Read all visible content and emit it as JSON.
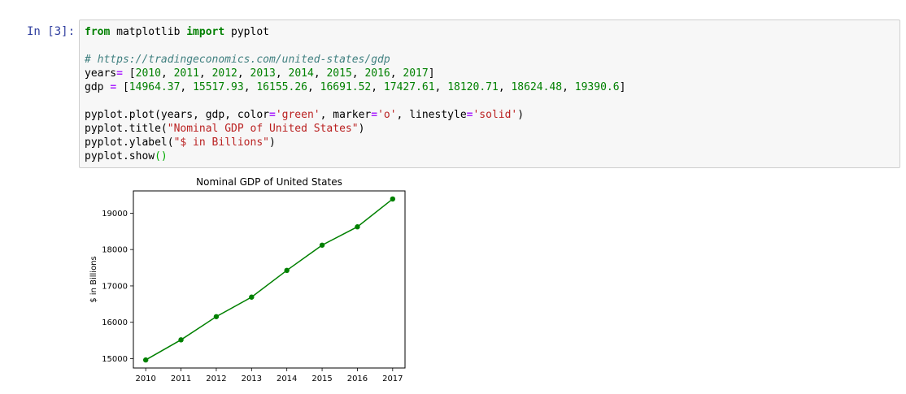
{
  "cell": {
    "prompt": "In [3]:",
    "lines": [
      [
        {
          "t": "from",
          "c": "kw"
        },
        {
          "t": " matplotlib "
        },
        {
          "t": "import",
          "c": "kw"
        },
        {
          "t": " pyplot"
        }
      ],
      [],
      [
        {
          "t": "# https://tradingeconomics.com/united-states/gdp",
          "c": "cm"
        }
      ],
      [
        {
          "t": "years"
        },
        {
          "t": "=",
          "c": "op"
        },
        {
          "t": " ["
        },
        {
          "t": "2010",
          "c": "num"
        },
        {
          "t": ", "
        },
        {
          "t": "2011",
          "c": "num"
        },
        {
          "t": ", "
        },
        {
          "t": "2012",
          "c": "num"
        },
        {
          "t": ", "
        },
        {
          "t": "2013",
          "c": "num"
        },
        {
          "t": ", "
        },
        {
          "t": "2014",
          "c": "num"
        },
        {
          "t": ", "
        },
        {
          "t": "2015",
          "c": "num"
        },
        {
          "t": ", "
        },
        {
          "t": "2016",
          "c": "num"
        },
        {
          "t": ", "
        },
        {
          "t": "2017",
          "c": "num"
        },
        {
          "t": "]"
        }
      ],
      [
        {
          "t": "gdp "
        },
        {
          "t": "=",
          "c": "op"
        },
        {
          "t": " ["
        },
        {
          "t": "14964.37",
          "c": "num"
        },
        {
          "t": ", "
        },
        {
          "t": "15517.93",
          "c": "num"
        },
        {
          "t": ", "
        },
        {
          "t": "16155.26",
          "c": "num"
        },
        {
          "t": ", "
        },
        {
          "t": "16691.52",
          "c": "num"
        },
        {
          "t": ", "
        },
        {
          "t": "17427.61",
          "c": "num"
        },
        {
          "t": ", "
        },
        {
          "t": "18120.71",
          "c": "num"
        },
        {
          "t": ", "
        },
        {
          "t": "18624.48",
          "c": "num"
        },
        {
          "t": ", "
        },
        {
          "t": "19390.6",
          "c": "num"
        },
        {
          "t": "]"
        }
      ],
      [],
      [
        {
          "t": "pyplot.plot(years, gdp, color"
        },
        {
          "t": "=",
          "c": "op"
        },
        {
          "t": "'green'",
          "c": "str"
        },
        {
          "t": ", marker"
        },
        {
          "t": "=",
          "c": "op"
        },
        {
          "t": "'o'",
          "c": "str"
        },
        {
          "t": ", linestyle"
        },
        {
          "t": "=",
          "c": "op"
        },
        {
          "t": "'solid'",
          "c": "str"
        },
        {
          "t": ")"
        }
      ],
      [
        {
          "t": "pyplot.title("
        },
        {
          "t": "\"Nominal GDP of United States\"",
          "c": "str"
        },
        {
          "t": ")"
        }
      ],
      [
        {
          "t": "pyplot.ylabel("
        },
        {
          "t": "\"$ in Billions\"",
          "c": "str"
        },
        {
          "t": ")"
        }
      ],
      [
        {
          "t": "pyplot.show"
        },
        {
          "t": "()",
          "c": "paren"
        }
      ]
    ]
  },
  "chart_data": {
    "type": "line",
    "title": "Nominal GDP of United States",
    "xlabel": "",
    "ylabel": "$ in Billions",
    "x": [
      2010,
      2011,
      2012,
      2013,
      2014,
      2015,
      2016,
      2017
    ],
    "series": [
      {
        "values": [
          14964.37,
          15517.93,
          16155.26,
          16691.52,
          17427.61,
          18120.71,
          18624.48,
          19390.6
        ],
        "color": "#008000",
        "marker": "o",
        "linestyle": "solid"
      }
    ],
    "xticks": [
      2010,
      2011,
      2012,
      2013,
      2014,
      2015,
      2016,
      2017
    ],
    "yticks": [
      15000,
      16000,
      17000,
      18000,
      19000
    ],
    "xlim": [
      2009.65,
      2017.35
    ],
    "ylim": [
      14743.0,
      19612.0
    ],
    "grid": false
  }
}
